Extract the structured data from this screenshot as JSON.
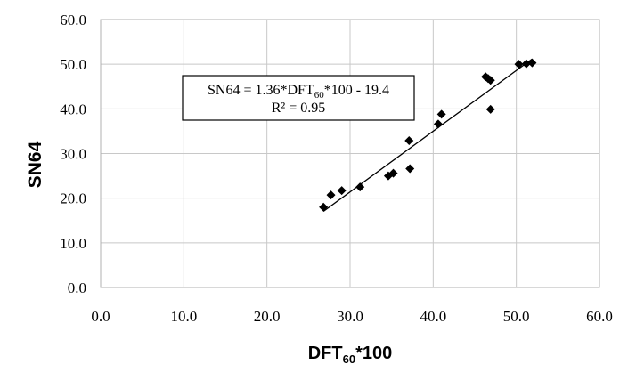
{
  "chart_data": {
    "type": "scatter",
    "title": "",
    "xlabel": "DFT",
    "xlabel_sub": "60",
    "xlabel_suffix": "*100",
    "ylabel": "SN64",
    "xlim": [
      0,
      60
    ],
    "ylim": [
      0,
      60
    ],
    "x_ticks": [
      "0.0",
      "10.0",
      "20.0",
      "30.0",
      "40.0",
      "50.0",
      "60.0"
    ],
    "y_ticks": [
      "0.0",
      "10.0",
      "20.0",
      "30.0",
      "40.0",
      "50.0",
      "60.0"
    ],
    "grid": true,
    "marker_color": "#000000",
    "grid_color": "#c8c8c8",
    "points": [
      {
        "x": 26.8,
        "y": 18.0
      },
      {
        "x": 27.7,
        "y": 20.7
      },
      {
        "x": 29.0,
        "y": 21.7
      },
      {
        "x": 31.2,
        "y": 22.5
      },
      {
        "x": 34.6,
        "y": 25.0
      },
      {
        "x": 35.2,
        "y": 25.6
      },
      {
        "x": 37.2,
        "y": 26.6
      },
      {
        "x": 37.1,
        "y": 32.9
      },
      {
        "x": 40.6,
        "y": 36.6
      },
      {
        "x": 41.0,
        "y": 38.8
      },
      {
        "x": 46.3,
        "y": 47.2
      },
      {
        "x": 46.6,
        "y": 46.8
      },
      {
        "x": 46.9,
        "y": 46.4
      },
      {
        "x": 46.9,
        "y": 39.9
      },
      {
        "x": 50.3,
        "y": 50.0
      },
      {
        "x": 51.2,
        "y": 50.1
      },
      {
        "x": 51.9,
        "y": 50.3
      }
    ],
    "trendline": {
      "slope": 1.36,
      "intercept": -19.4,
      "x_range": [
        26.8,
        51.9
      ]
    },
    "equation": {
      "line1_a": "SN64 = 1.36*DFT",
      "line1_sub": "60",
      "line1_b": "*100 - 19.4",
      "line2": "R² = 0.95"
    }
  }
}
